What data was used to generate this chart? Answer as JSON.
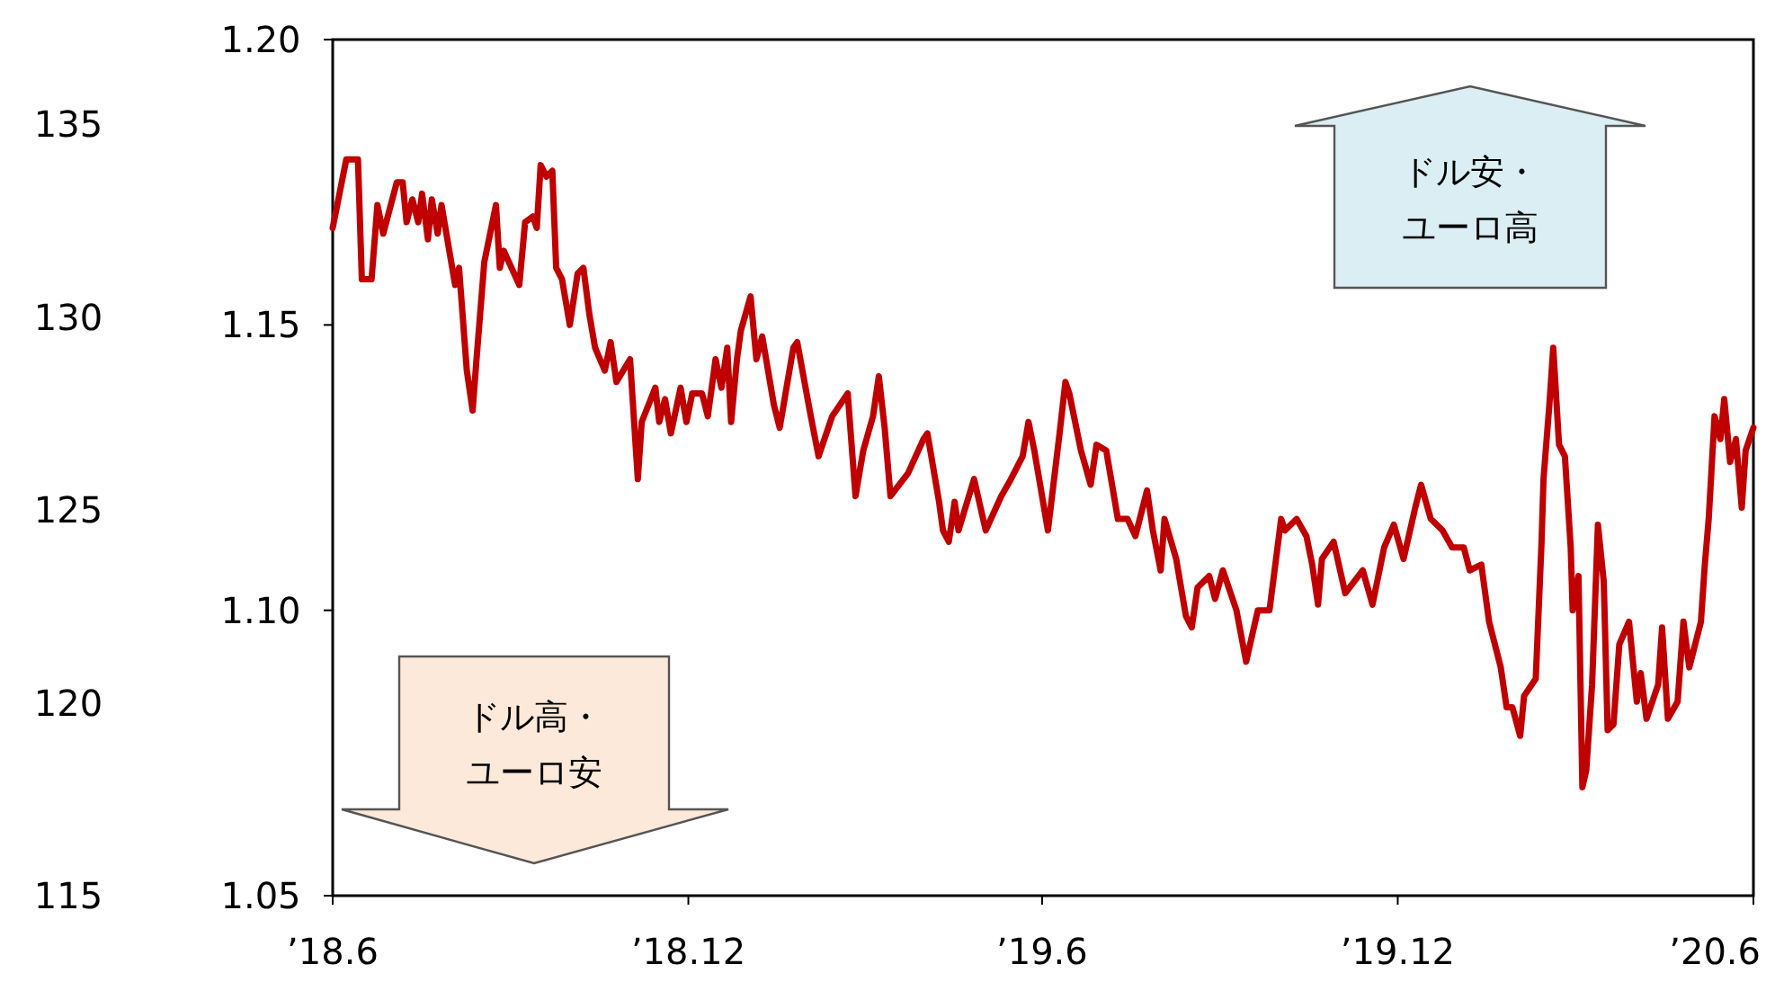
{
  "chart_data": {
    "type": "line",
    "x": [
      "2018-06-01",
      "2018-06-08",
      "2018-06-14",
      "2018-06-16",
      "2018-06-21",
      "2018-06-24",
      "2018-06-27",
      "2018-07-04",
      "2018-07-07",
      "2018-07-09",
      "2018-07-12",
      "2018-07-15",
      "2018-07-17",
      "2018-07-20",
      "2018-07-22",
      "2018-07-25",
      "2018-07-27",
      "2018-08-03",
      "2018-08-05",
      "2018-08-09",
      "2018-08-12",
      "2018-08-14",
      "2018-08-18",
      "2018-08-24",
      "2018-08-26",
      "2018-08-28",
      "2018-09-05",
      "2018-09-08",
      "2018-09-12",
      "2018-09-14",
      "2018-09-16",
      "2018-09-19",
      "2018-09-22",
      "2018-09-24",
      "2018-09-27",
      "2018-10-01",
      "2018-10-05",
      "2018-10-08",
      "2018-10-11",
      "2018-10-14",
      "2018-10-19",
      "2018-10-22",
      "2018-10-25",
      "2018-11-01",
      "2018-11-05",
      "2018-11-07",
      "2018-11-14",
      "2018-11-16",
      "2018-11-19",
      "2018-11-22",
      "2018-11-27",
      "2018-11-30",
      "2018-12-03",
      "2018-12-08",
      "2018-12-11",
      "2018-12-15",
      "2018-12-18",
      "2018-12-21",
      "2018-12-23",
      "2018-12-26",
      "2018-12-28",
      "2019-01-02",
      "2019-01-05",
      "2019-01-08",
      "2019-01-14",
      "2019-01-17",
      "2019-01-24",
      "2019-01-26",
      "2019-02-02",
      "2019-02-06",
      "2019-02-13",
      "2019-02-21",
      "2019-02-25",
      "2019-03-01",
      "2019-03-06",
      "2019-03-09",
      "2019-03-12",
      "2019-03-15",
      "2019-03-24",
      "2019-04-01",
      "2019-04-03",
      "2019-04-09",
      "2019-04-11",
      "2019-04-14",
      "2019-04-17",
      "2019-04-19",
      "2019-04-27",
      "2019-05-03",
      "2019-05-11",
      "2019-05-16",
      "2019-05-22",
      "2019-05-25",
      "2019-05-28",
      "2019-06-04",
      "2019-06-10",
      "2019-06-13",
      "2019-06-15",
      "2019-06-21",
      "2019-06-26",
      "2019-06-29",
      "2019-07-04",
      "2019-07-10",
      "2019-07-15",
      "2019-07-19",
      "2019-07-25",
      "2019-07-28",
      "2019-08-01",
      "2019-08-03",
      "2019-08-09",
      "2019-08-14",
      "2019-08-17",
      "2019-08-20",
      "2019-08-26",
      "2019-08-29",
      "2019-09-02",
      "2019-09-09",
      "2019-09-14",
      "2019-09-20",
      "2019-09-26",
      "2019-09-29",
      "2019-10-02",
      "2019-10-04",
      "2019-10-10",
      "2019-10-15",
      "2019-10-18",
      "2019-10-21",
      "2019-10-23",
      "2019-10-29",
      "2019-11-04",
      "2019-11-13",
      "2019-11-18",
      "2019-11-24",
      "2019-11-29",
      "2019-12-04",
      "2019-12-10",
      "2019-12-13",
      "2019-12-18",
      "2019-12-24",
      "2019-12-29",
      "2020-01-04",
      "2020-01-07",
      "2020-01-13",
      "2020-01-17",
      "2020-01-23",
      "2020-01-26",
      "2020-01-29",
      "2020-02-02",
      "2020-02-04",
      "2020-02-10",
      "2020-02-13",
      "2020-02-14",
      "2020-02-17",
      "2020-02-19",
      "2020-02-22",
      "2020-02-25",
      "2020-02-28",
      "2020-02-29",
      "2020-03-03",
      "2020-03-05",
      "2020-03-07",
      "2020-03-10",
      "2020-03-13",
      "2020-03-16",
      "2020-03-18",
      "2020-03-21",
      "2020-03-24",
      "2020-03-29",
      "2020-04-02",
      "2020-04-04",
      "2020-04-07",
      "2020-04-13",
      "2020-04-15",
      "2020-04-18",
      "2020-04-23",
      "2020-04-26",
      "2020-04-29",
      "2020-05-05",
      "2020-05-07",
      "2020-05-09",
      "2020-05-12",
      "2020-05-15",
      "2020-05-17",
      "2020-05-20",
      "2020-05-23",
      "2020-05-26",
      "2020-05-28",
      "2020-06-01"
    ],
    "series": [
      {
        "color": "#c00000",
        "values": [
          1.167,
          1.179,
          1.179,
          1.158,
          1.158,
          1.171,
          1.166,
          1.175,
          1.175,
          1.168,
          1.172,
          1.168,
          1.173,
          1.165,
          1.172,
          1.166,
          1.171,
          1.157,
          1.16,
          1.142,
          1.135,
          1.144,
          1.161,
          1.171,
          1.16,
          1.163,
          1.157,
          1.168,
          1.169,
          1.167,
          1.178,
          1.176,
          1.177,
          1.16,
          1.158,
          1.15,
          1.159,
          1.16,
          1.152,
          1.146,
          1.142,
          1.147,
          1.14,
          1.144,
          1.123,
          1.133,
          1.139,
          1.133,
          1.137,
          1.131,
          1.139,
          1.133,
          1.138,
          1.138,
          1.134,
          1.144,
          1.139,
          1.146,
          1.133,
          1.144,
          1.149,
          1.155,
          1.144,
          1.148,
          1.136,
          1.132,
          1.146,
          1.147,
          1.134,
          1.127,
          1.134,
          1.138,
          1.12,
          1.128,
          1.134,
          1.141,
          1.132,
          1.12,
          1.124,
          1.13,
          1.131,
          1.119,
          1.114,
          1.112,
          1.119,
          1.114,
          1.123,
          1.114,
          1.12,
          1.123,
          1.127,
          1.133,
          1.128,
          1.114,
          1.131,
          1.14,
          1.138,
          1.128,
          1.122,
          1.129,
          1.128,
          1.116,
          1.116,
          1.113,
          1.121,
          1.114,
          1.107,
          1.116,
          1.109,
          1.099,
          1.097,
          1.104,
          1.106,
          1.102,
          1.107,
          1.1,
          1.091,
          1.1,
          1.1,
          1.108,
          1.116,
          1.114,
          1.116,
          1.113,
          1.108,
          1.101,
          1.109,
          1.112,
          1.103,
          1.107,
          1.101,
          1.111,
          1.115,
          1.109,
          1.118,
          1.122,
          1.116,
          1.114,
          1.111,
          1.111,
          1.107,
          1.108,
          1.098,
          1.09,
          1.083,
          1.083,
          1.078,
          1.085,
          1.088,
          1.112,
          1.123,
          1.136,
          1.146,
          1.129,
          1.127,
          1.111,
          1.1,
          1.106,
          1.069,
          1.072,
          1.087,
          1.115,
          1.105,
          1.079,
          1.08,
          1.094,
          1.098,
          1.084,
          1.089,
          1.081,
          1.087,
          1.097,
          1.081,
          1.084,
          1.098,
          1.09,
          1.098,
          1.108,
          1.116,
          1.134,
          1.13,
          1.137,
          1.126,
          1.13,
          1.118,
          1.128,
          1.132
        ]
      }
    ],
    "xlim": [
      "2018-06-01",
      "2020-06-01"
    ],
    "xticks": [
      {
        "value": "2018-06-01",
        "label": "’18.6"
      },
      {
        "value": "2018-12-01",
        "label": "’18.12"
      },
      {
        "value": "2019-06-01",
        "label": "’19.6"
      },
      {
        "value": "2019-12-01",
        "label": "’19.12"
      },
      {
        "value": "2020-06-01",
        "label": "’20.6"
      }
    ],
    "ylim": [
      1.05,
      1.2
    ],
    "yticks": [
      {
        "value": 1.05,
        "label": "1.05"
      },
      {
        "value": 1.1,
        "label": "1.10"
      },
      {
        "value": 1.15,
        "label": "1.15"
      },
      {
        "value": 1.2,
        "label": "1.20"
      }
    ],
    "y2lim": [
      115,
      137.2
    ],
    "y2ticks": [
      115,
      120,
      125,
      130,
      135
    ],
    "annotations": [
      "ドル安・ユーロ高",
      "ドル高・ユーロ安"
    ],
    "grid": false,
    "marker": "none",
    "line_style": "solid"
  }
}
